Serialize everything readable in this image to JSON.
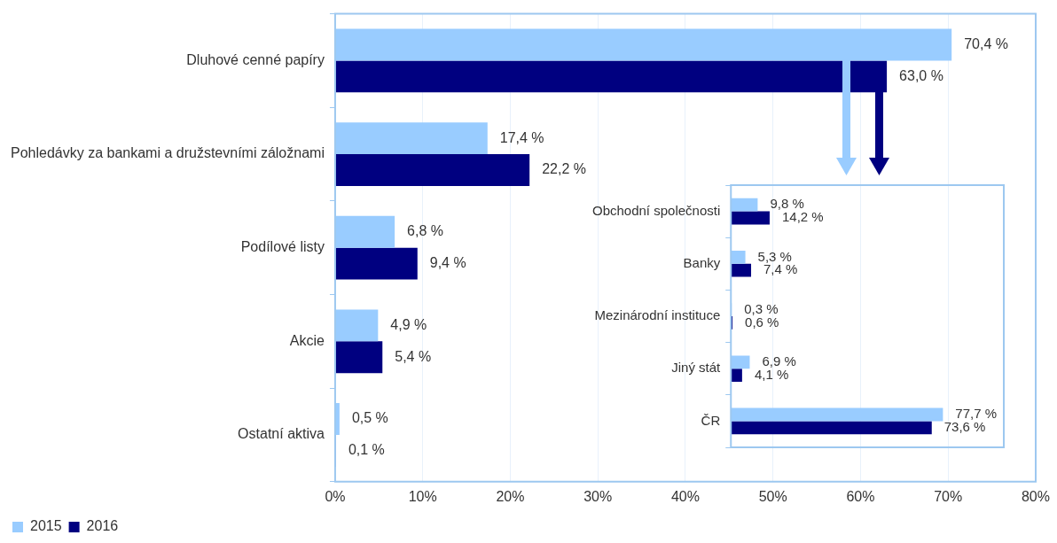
{
  "chart_data": [
    {
      "type": "bar",
      "orientation": "horizontal",
      "categories": [
        "Dluhové cenné papíry",
        "Pohledávky za bankami a družstevními záložnami",
        "Podílové listy",
        "Akcie",
        "Ostatní aktiva"
      ],
      "series": [
        {
          "name": "2015",
          "color": "#99ccff",
          "values": [
            70.4,
            17.4,
            6.8,
            4.9,
            0.5
          ],
          "value_labels": [
            "70,4 %",
            "17,4 %",
            "6,8 %",
            "4,9 %",
            "0,5 %"
          ]
        },
        {
          "name": "2016",
          "color": "#000080",
          "values": [
            63.0,
            22.2,
            9.4,
            5.4,
            0.1
          ],
          "value_labels": [
            "63,0 %",
            "22,2 %",
            "9,4 %",
            "5,4 %",
            "0,1 %"
          ]
        }
      ],
      "xlim": [
        0,
        80
      ],
      "xticks": [
        {
          "value": 0,
          "label": "0%"
        },
        {
          "value": 10,
          "label": "10%"
        },
        {
          "value": 20,
          "label": "20%"
        },
        {
          "value": 30,
          "label": "30%"
        },
        {
          "value": 40,
          "label": "40%"
        },
        {
          "value": 50,
          "label": "50%"
        },
        {
          "value": 60,
          "label": "60%"
        },
        {
          "value": 70,
          "label": "70%"
        },
        {
          "value": 80,
          "label": "80%"
        }
      ],
      "grid": "x",
      "legend": "bottom"
    },
    {
      "type": "bar",
      "orientation": "horizontal",
      "categories": [
        "Obchodní společnosti",
        "Banky",
        "Mezinárodní instituce",
        "Jiný stát",
        "ČR"
      ],
      "series": [
        {
          "color": "#99ccff",
          "values": [
            9.8,
            5.3,
            0.3,
            6.9,
            77.7
          ],
          "value_labels": [
            "9,8 %",
            "5,3 %",
            "0,3 %",
            "6,9 %",
            "77,7 %"
          ]
        },
        {
          "color": "#000080",
          "values": [
            14.2,
            7.4,
            0.6,
            4.1,
            73.6
          ],
          "value_labels": [
            "14,2 %",
            "7,4 %",
            "0,6 %",
            "4,1 %",
            "73,6 %"
          ]
        }
      ],
      "tick_labels": "y",
      "legend": false
    }
  ]
}
